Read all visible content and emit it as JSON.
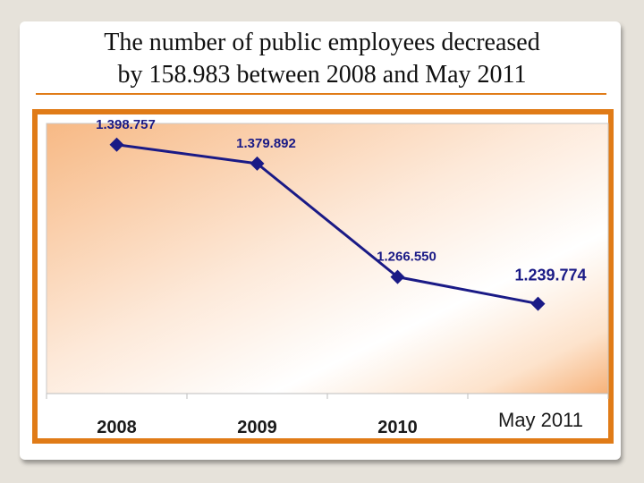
{
  "slide": {
    "title_line1": "The number of public employees decreased",
    "title_line2": "by 158.983 between 2008 and May 2011"
  },
  "colors": {
    "accent_orange": "#e07b17",
    "series_navy": "#1a1a86"
  },
  "chart_data": {
    "type": "line",
    "categories": [
      "2008",
      "2009",
      "2010",
      "May 2011"
    ],
    "series": [
      {
        "values": [
          1398757,
          1379892,
          1266550,
          1239774
        ],
        "data_labels": [
          "1.398.757",
          "1.379.892",
          "1.266.550",
          "1.239.774"
        ]
      }
    ],
    "title": "",
    "xlabel": "",
    "ylabel": "",
    "ylim": [
      1150000,
      1420000
    ],
    "grid": false,
    "legend": "none",
    "marker": "diamond"
  }
}
